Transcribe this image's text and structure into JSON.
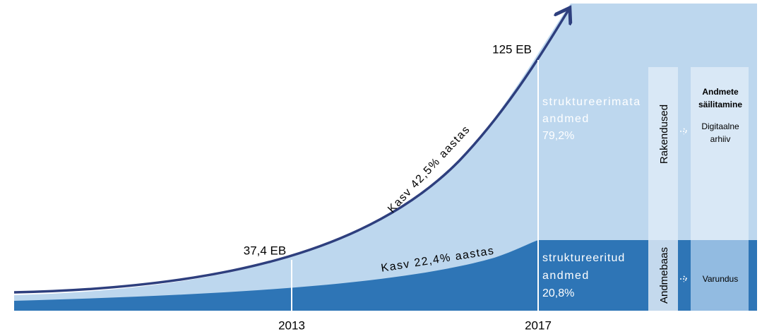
{
  "years": [
    "2013",
    "2017"
  ],
  "values": {
    "start": "37,4 EB",
    "end": "125 EB"
  },
  "growth": {
    "total": "Kasv 42,5% aastas",
    "structured": "Kasv 22,4% aastas"
  },
  "segments": [
    {
      "lines": [
        "struktureerimata",
        "andmed",
        "79,2%"
      ]
    },
    {
      "lines": [
        "struktureeritud",
        "andmed",
        "20,8%"
      ]
    }
  ],
  "uses": {
    "top": "Rakendused",
    "bottom": "Andmebaas"
  },
  "storage": {
    "title": [
      "Andmete",
      "säilitamine"
    ],
    "top": [
      "Digitaalne",
      "arhiiv"
    ],
    "bottom": "Varundus"
  }
}
